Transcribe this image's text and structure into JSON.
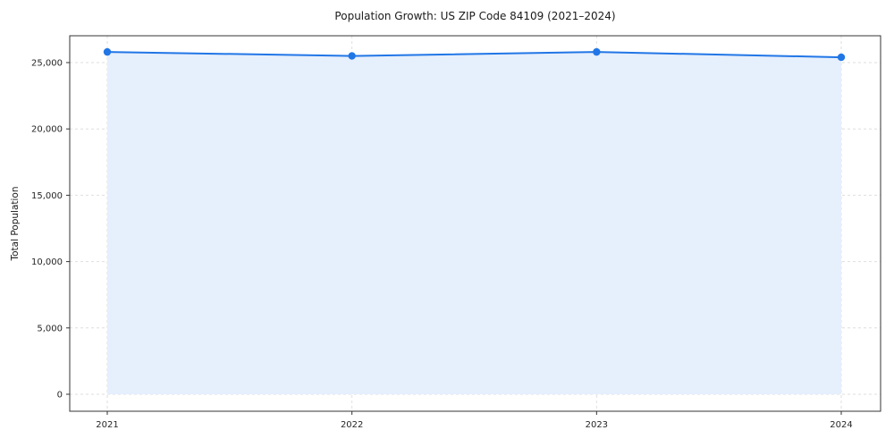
{
  "chart_data": {
    "type": "area",
    "title": "Population Growth: US ZIP Code 84109 (2021–2024)",
    "xlabel": "",
    "ylabel": "Total Population",
    "x": [
      2021,
      2022,
      2023,
      2024
    ],
    "xtick_labels": [
      "2021",
      "2022",
      "2023",
      "2024"
    ],
    "series": [
      {
        "name": "Total Population",
        "values": [
          25800,
          25500,
          25800,
          25400
        ]
      }
    ],
    "yticks": [
      0,
      5000,
      10000,
      15000,
      20000,
      25000
    ],
    "ytick_labels": [
      "0",
      "5,000",
      "10,000",
      "15,000",
      "20,000",
      "25,000"
    ],
    "ylim": [
      0,
      27000
    ],
    "grid": true,
    "legend": "none",
    "line_color": "#2176e6",
    "marker_color": "#2176e6",
    "fill_color": "#e6effc",
    "grid_color": "#dedede",
    "spine_color": "#333333",
    "background": "#ffffff"
  }
}
